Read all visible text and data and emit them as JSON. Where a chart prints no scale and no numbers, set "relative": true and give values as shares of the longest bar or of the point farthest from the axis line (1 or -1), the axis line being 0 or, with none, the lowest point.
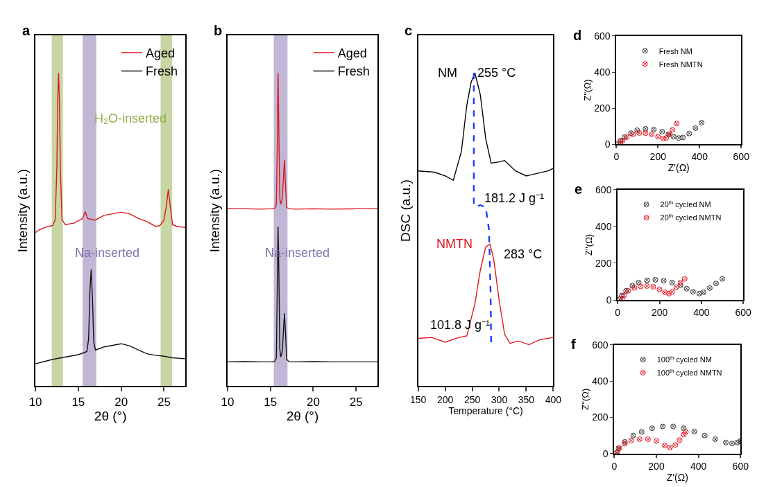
{
  "chart_data": [
    {
      "type": "line",
      "title": "a",
      "xlabel": "2θ (°)",
      "ylabel": "Intensity (a.u.)",
      "relative": true,
      "tick_labels": "x",
      "legend": "top right",
      "xlim": [
        10,
        27.5
      ],
      "xticks": [
        10,
        15,
        20,
        25
      ],
      "series": [
        {
          "name": "Aged",
          "color": "#e0141e",
          "x": [
            10,
            10.5,
            11,
            11.5,
            12,
            12.3,
            12.5,
            12.6,
            12.7,
            12.8,
            12.9,
            13.1,
            13.5,
            14,
            14.5,
            15,
            15.5,
            15.8,
            16.1,
            16.5,
            17,
            17.5,
            18,
            19,
            20,
            21,
            22,
            23,
            24,
            24.5,
            25,
            25.3,
            25.5,
            25.7,
            26,
            26.5,
            27,
            27.5
          ],
          "values": [
            0.49,
            0.5,
            0.505,
            0.51,
            0.512,
            0.53,
            0.7,
            0.92,
            1.0,
            0.9,
            0.7,
            0.53,
            0.515,
            0.518,
            0.52,
            0.528,
            0.535,
            0.557,
            0.535,
            0.532,
            0.53,
            0.538,
            0.545,
            0.55,
            0.555,
            0.55,
            0.535,
            0.525,
            0.51,
            0.512,
            0.53,
            0.58,
            0.628,
            0.58,
            0.515,
            0.51,
            0.508,
            0.506
          ]
        },
        {
          "name": "Fresh",
          "color": "#111111",
          "x": [
            10,
            11,
            12,
            13,
            14,
            15,
            15.5,
            16,
            16.2,
            16.35,
            16.5,
            16.65,
            16.8,
            17,
            17.5,
            18,
            19,
            20,
            21,
            22,
            23,
            24,
            25,
            26,
            27,
            27.5
          ],
          "values": [
            0.071,
            0.078,
            0.085,
            0.09,
            0.095,
            0.1,
            0.105,
            0.11,
            0.15,
            0.3,
            0.372,
            0.28,
            0.14,
            0.115,
            0.12,
            0.125,
            0.13,
            0.135,
            0.128,
            0.115,
            0.103,
            0.098,
            0.095,
            0.09,
            0.088,
            0.087
          ]
        }
      ],
      "bands": [
        {
          "axis": "x",
          "from": 11.9,
          "to": 13.2,
          "color": "#8fae4a"
        },
        {
          "axis": "x",
          "from": 24.6,
          "to": 25.95,
          "color": "#8fae4a"
        },
        {
          "axis": "x",
          "from": 15.5,
          "to": 17.1,
          "color": "#8070aa"
        }
      ],
      "annotations": [
        "H₂O-inserted",
        "Na-inserted"
      ]
    },
    {
      "type": "line",
      "title": "b",
      "xlabel": "2θ (°)",
      "ylabel": "Intensity (a.u.)",
      "relative": true,
      "tick_labels": "x",
      "legend": "top right",
      "xlim": [
        10,
        27.5
      ],
      "xticks": [
        10,
        15,
        20,
        25
      ],
      "series": [
        {
          "name": "Aged",
          "color": "#e0141e",
          "x": [
            10,
            12,
            14,
            15,
            15.5,
            15.7,
            15.8,
            15.9,
            16.0,
            16.1,
            16.2,
            16.4,
            16.55,
            16.65,
            16.75,
            16.9,
            17.2,
            18,
            20,
            22,
            25,
            27.5
          ],
          "values": [
            0.566,
            0.566,
            0.565,
            0.566,
            0.567,
            0.58,
            0.75,
            1.0,
            0.8,
            0.6,
            0.58,
            0.6,
            0.68,
            0.722,
            0.65,
            0.57,
            0.566,
            0.565,
            0.566,
            0.565,
            0.566,
            0.566
          ]
        },
        {
          "name": "Fresh",
          "color": "#111111",
          "x": [
            10,
            12,
            14,
            15,
            15.5,
            15.7,
            15.8,
            15.9,
            16.0,
            16.1,
            16.2,
            16.4,
            16.55,
            16.65,
            16.75,
            16.9,
            17.2,
            18,
            20,
            22,
            25,
            27.5
          ],
          "values": [
            0.077,
            0.078,
            0.077,
            0.077,
            0.078,
            0.09,
            0.3,
            0.508,
            0.35,
            0.12,
            0.093,
            0.11,
            0.19,
            0.232,
            0.18,
            0.085,
            0.077,
            0.077,
            0.078,
            0.077,
            0.077,
            0.077
          ]
        }
      ],
      "bands": [
        {
          "axis": "x",
          "from": 15.4,
          "to": 17.0,
          "color": "#8070aa"
        }
      ],
      "annotations": [
        "Na-inserted"
      ]
    },
    {
      "type": "line",
      "title": "c",
      "xlabel": "Temperature (°C)",
      "ylabel": "DSC (a.u.)",
      "relative": true,
      "tick_labels": "x",
      "xlim": [
        150,
        400
      ],
      "xticks": [
        150,
        200,
        250,
        300,
        350,
        400
      ],
      "series": [
        {
          "name": "NM",
          "color": "#000000",
          "x": [
            150,
            180,
            200,
            215,
            230,
            240,
            248,
            255,
            265,
            275,
            285,
            300,
            310,
            330,
            350,
            370,
            390,
            400
          ],
          "values": [
            0.687,
            0.683,
            0.671,
            0.657,
            0.749,
            0.897,
            0.97,
            1.0,
            0.93,
            0.79,
            0.712,
            0.716,
            0.72,
            0.687,
            0.671,
            0.679,
            0.687,
            0.695
          ]
        },
        {
          "name": "NMTN",
          "color": "#e0141e",
          "x": [
            150,
            175,
            200,
            225,
            240,
            255,
            265,
            275,
            283,
            290,
            300,
            310,
            320,
            335,
            355,
            375,
            400
          ],
          "values": [
            0.152,
            0.155,
            0.14,
            0.155,
            0.16,
            0.263,
            0.37,
            0.444,
            0.453,
            0.403,
            0.272,
            0.165,
            0.136,
            0.144,
            0.132,
            0.148,
            0.155
          ]
        },
        {
          "type": "line",
          "line_style": "dashed",
          "color": "#1a3cff",
          "x": [
            253,
            253,
            256,
            265,
            275,
            281,
            284,
            285
          ],
          "values": [
            1.0,
            0.58,
            0.572,
            0.578,
            0.57,
            0.5,
            0.3,
            0.14
          ]
        }
      ],
      "annotations": [
        "255 °C",
        "283 °C",
        "181.2 J g⁻¹",
        "101.8 J g⁻¹"
      ]
    },
    {
      "type": "scatter",
      "title": "d",
      "xlabel": "Z'(Ω)",
      "ylabel": "Z''(Ω)",
      "marker": "cross",
      "legend": "top left",
      "xlim": [
        0,
        600
      ],
      "ylim": [
        0,
        600
      ],
      "xticks": [
        0,
        200,
        400,
        600
      ],
      "yticks": [
        0,
        200,
        400,
        600
      ],
      "series": [
        {
          "name": "Fresh NM",
          "color": "#333333",
          "x": [
            10,
            20,
            40,
            70,
            100,
            140,
            180,
            220,
            250,
            275,
            300,
            320,
            350,
            380,
            410
          ],
          "values": [
            5,
            20,
            40,
            62,
            78,
            86,
            82,
            70,
            55,
            42,
            35,
            38,
            60,
            90,
            120
          ]
        },
        {
          "name": "Fresh NMTN",
          "color": "#e8141e",
          "x": [
            20,
            30,
            50,
            80,
            110,
            140,
            170,
            200,
            225,
            240,
            255,
            270,
            290
          ],
          "values": [
            5,
            20,
            40,
            55,
            63,
            62,
            55,
            42,
            32,
            35,
            55,
            80,
            115
          ]
        }
      ]
    },
    {
      "type": "scatter",
      "title": "e",
      "ylabel": "Z''(Ω)",
      "marker": "cross",
      "legend": "top left",
      "xlim": [
        0,
        600
      ],
      "ylim": [
        0,
        600
      ],
      "xticks": [
        0,
        200,
        400,
        600
      ],
      "yticks": [
        0,
        200,
        400,
        600
      ],
      "series": [
        {
          "name": "20$^{th}$ cycled NM",
          "color": "#333333",
          "x": [
            10,
            20,
            40,
            70,
            100,
            140,
            180,
            220,
            260,
            300,
            330,
            360,
            390,
            410,
            440,
            470,
            500
          ],
          "values": [
            5,
            25,
            50,
            78,
            95,
            107,
            110,
            105,
            95,
            80,
            62,
            45,
            35,
            42,
            65,
            90,
            115
          ]
        },
        {
          "name": "20$^{th}$ cycled NMTN",
          "color": "#e8141e",
          "x": [
            20,
            30,
            50,
            80,
            110,
            140,
            170,
            200,
            225,
            245,
            260,
            280,
            300,
            320
          ],
          "values": [
            5,
            25,
            50,
            66,
            74,
            76,
            72,
            58,
            42,
            35,
            45,
            70,
            95,
            115
          ]
        }
      ]
    },
    {
      "type": "scatter",
      "title": "f",
      "xlabel": "Z'(Ω)",
      "ylabel": "Z''(Ω)",
      "marker": "cross",
      "legend": "top left",
      "xlim": [
        0,
        600
      ],
      "ylim": [
        0,
        600
      ],
      "xticks": [
        0,
        200,
        400,
        600
      ],
      "yticks": [
        0,
        200,
        400,
        600
      ],
      "series": [
        {
          "name": "100$^{th}$ cycled NM",
          "color": "#333333",
          "x": [
            10,
            20,
            50,
            90,
            130,
            180,
            230,
            280,
            330,
            380,
            430,
            480,
            530,
            560,
            585,
            600
          ],
          "values": [
            5,
            30,
            65,
            100,
            120,
            140,
            150,
            150,
            140,
            122,
            100,
            80,
            62,
            56,
            62,
            70
          ]
        },
        {
          "name": "100$^{th}$ cycled NMTN",
          "color": "#e8141e",
          "x": [
            15,
            25,
            50,
            80,
            120,
            160,
            200,
            240,
            265,
            290,
            310,
            330,
            340
          ],
          "values": [
            5,
            30,
            55,
            72,
            80,
            80,
            70,
            45,
            35,
            48,
            75,
            105,
            120
          ]
        }
      ]
    }
  ]
}
